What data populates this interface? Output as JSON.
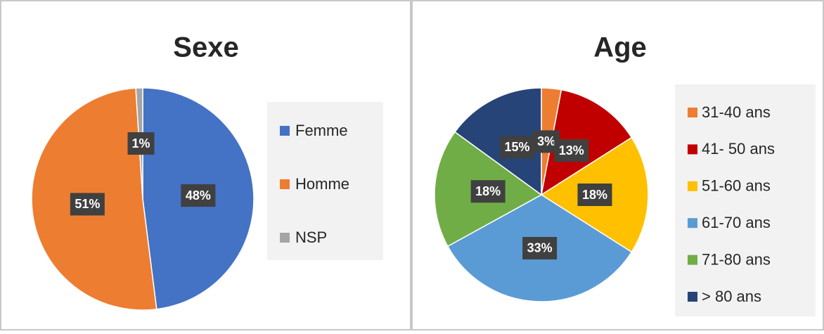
{
  "chart_data": [
    {
      "type": "pie",
      "title": "Sexe",
      "categories": [
        "Femme",
        "Homme",
        "NSP"
      ],
      "values": [
        48,
        51,
        1
      ],
      "value_labels": [
        "48%",
        "51%",
        "1%"
      ],
      "colors": [
        "#4472c4",
        "#ed7d31",
        "#a5a5a5"
      ],
      "legend": "right"
    },
    {
      "type": "pie",
      "title": "Age",
      "categories": [
        "31-40 ans",
        "41- 50 ans",
        "51-60 ans",
        "61-70 ans",
        "71-80 ans",
        "> 80 ans"
      ],
      "values": [
        3,
        13,
        18,
        33,
        18,
        15
      ],
      "value_labels": [
        "3%",
        "13%",
        "18%",
        "33%",
        "18%",
        "15%"
      ],
      "colors": [
        "#ed7d31",
        "#c00000",
        "#ffc000",
        "#5b9bd5",
        "#70ad47",
        "#264478"
      ],
      "legend": "right"
    }
  ]
}
